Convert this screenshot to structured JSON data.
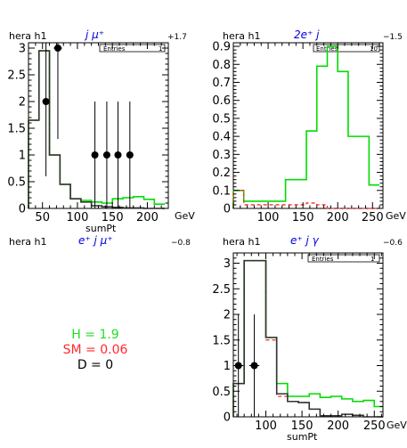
{
  "chart_data": [
    {
      "type": "histogram",
      "header_left": "hera h1",
      "channel": "j μ⁺",
      "header_right": "+1.7",
      "legend_label": "Entries",
      "legend_value": "1",
      "xlabel": "sumPt",
      "xunit": "GeV",
      "xlim": [
        30,
        230
      ],
      "ylim": [
        0,
        3.1
      ],
      "xticks": [
        "50",
        "100",
        "150",
        "200"
      ],
      "yticks": [
        "0",
        "0.5",
        "1",
        "1.5",
        "2",
        "2.5",
        "3"
      ],
      "bin_edges": [
        30,
        45,
        60,
        75,
        90,
        105,
        120,
        135,
        150,
        165,
        180,
        195,
        210,
        225
      ],
      "series": [
        {
          "color": "#00dd00",
          "style": "solid",
          "values": [
            1.65,
            2.95,
            1.0,
            0.45,
            0.18,
            0.15,
            0.12,
            0.1,
            0.18,
            0.2,
            0.22,
            0.17,
            0.08
          ]
        },
        {
          "color": "#ff2a2a",
          "style": "dashed",
          "values": [
            1.65,
            2.95,
            1.0,
            0.45,
            0.18,
            0.12,
            0.05,
            0.03,
            0.02,
            0.01,
            0.01,
            0.0,
            0.0
          ]
        },
        {
          "color": "#333333",
          "style": "solid",
          "values": [
            1.65,
            2.95,
            1.0,
            0.45,
            0.18,
            0.12,
            0.05,
            0.03,
            0.02,
            0.01,
            0.01,
            0.0,
            0.0
          ]
        }
      ],
      "points": [
        {
          "x": 55,
          "y": 2,
          "xerr": 5,
          "ylo": 0.6,
          "yhi": 3.1
        },
        {
          "x": 72,
          "y": 3,
          "xerr": 6,
          "ylo": 1.3,
          "yhi": 3.1
        },
        {
          "x": 125,
          "y": 1,
          "xerr": 4,
          "ylo": 0,
          "yhi": 2.0
        },
        {
          "x": 142,
          "y": 1,
          "xerr": 5,
          "ylo": 0,
          "yhi": 2.0
        },
        {
          "x": 158,
          "y": 1,
          "xerr": 5,
          "ylo": 0,
          "yhi": 2.0
        },
        {
          "x": 175,
          "y": 1,
          "xerr": 5,
          "ylo": 0,
          "yhi": 2.0
        }
      ]
    },
    {
      "type": "histogram",
      "header_left": "hera h1",
      "channel": "2e⁺ j",
      "header_right": "−1.5",
      "legend_label": "Entries",
      "legend_value": "10",
      "xlabel": "",
      "xunit": "GeV",
      "xlim": [
        50,
        265
      ],
      "ylim": [
        0,
        0.92
      ],
      "xticks": [
        "100",
        "150",
        "200",
        "250"
      ],
      "yticks": [
        "0",
        "0.1",
        "0.2",
        "0.3",
        "0.4",
        "0.5",
        "0.6",
        "0.7",
        "0.8",
        "0.9"
      ],
      "bin_edges": [
        50,
        65,
        80,
        95,
        110,
        125,
        140,
        155,
        170,
        185,
        200,
        215,
        230,
        245,
        260
      ],
      "series": [
        {
          "color": "#00dd00",
          "style": "solid",
          "values": [
            0.1,
            0.04,
            0.04,
            0.04,
            0.04,
            0.16,
            0.16,
            0.43,
            0.79,
            0.9,
            0.76,
            0.4,
            0.4,
            0.13
          ]
        },
        {
          "color": "#ff2a2a",
          "style": "dashed",
          "values": [
            0.1,
            0.02,
            0.02,
            0.02,
            0.02,
            0.02,
            0.02,
            0.03,
            0.02,
            0,
            0,
            0,
            0,
            0
          ]
        }
      ],
      "points": []
    },
    {
      "type": "histogram",
      "header_left": "hera h1",
      "channel": "e⁺ j γ",
      "header_right": "−0.6",
      "legend_label": "Entries",
      "legend_value": "1",
      "xlabel": "sumPt",
      "xunit": "GeV",
      "xlim": [
        55,
        262
      ],
      "ylim": [
        0,
        3.2
      ],
      "xticks": [
        "100",
        "150",
        "200",
        "250"
      ],
      "yticks": [
        "0",
        "0.5",
        "1",
        "1.5",
        "2",
        "2.5",
        "3"
      ],
      "bin_edges": [
        55,
        70,
        85,
        100,
        115,
        130,
        145,
        160,
        175,
        190,
        205,
        220,
        235,
        250,
        262
      ],
      "series": [
        {
          "color": "#00dd00",
          "style": "solid",
          "values": [
            0.65,
            3.05,
            3.05,
            1.55,
            0.65,
            0.4,
            0.4,
            0.45,
            0.38,
            0.4,
            0.35,
            0.3,
            0.32,
            0.2
          ]
        },
        {
          "color": "#ff2a2a",
          "style": "dashed",
          "values": [
            0.65,
            3.05,
            3.05,
            1.5,
            0.4,
            0.3,
            0.28,
            0.15,
            0.02,
            0.02,
            0.05,
            0.03,
            0.0,
            0.0
          ]
        },
        {
          "color": "#333333",
          "style": "solid",
          "values": [
            0.65,
            3.05,
            3.05,
            1.55,
            0.45,
            0.3,
            0.28,
            0.15,
            0.02,
            0.02,
            0.05,
            0.03,
            0.0,
            0.0
          ]
        }
      ],
      "points": [
        {
          "x": 62,
          "y": 1,
          "xerr": 7,
          "ylo": 0,
          "yhi": 2.0
        },
        {
          "x": 84,
          "y": 1,
          "xerr": 7,
          "ylo": 0,
          "yhi": 2.0
        }
      ]
    }
  ],
  "empty_panel": {
    "header_left": "hera h1",
    "channel": "e⁺ j μ⁺",
    "header_right": "−0.8"
  },
  "stats": {
    "h_text": "H = 1.9",
    "sm_text": "SM = 0.06",
    "d_text": "D = 0",
    "h_color": "#22dd22",
    "sm_color": "#ff2a2a",
    "d_color": "#000000"
  }
}
